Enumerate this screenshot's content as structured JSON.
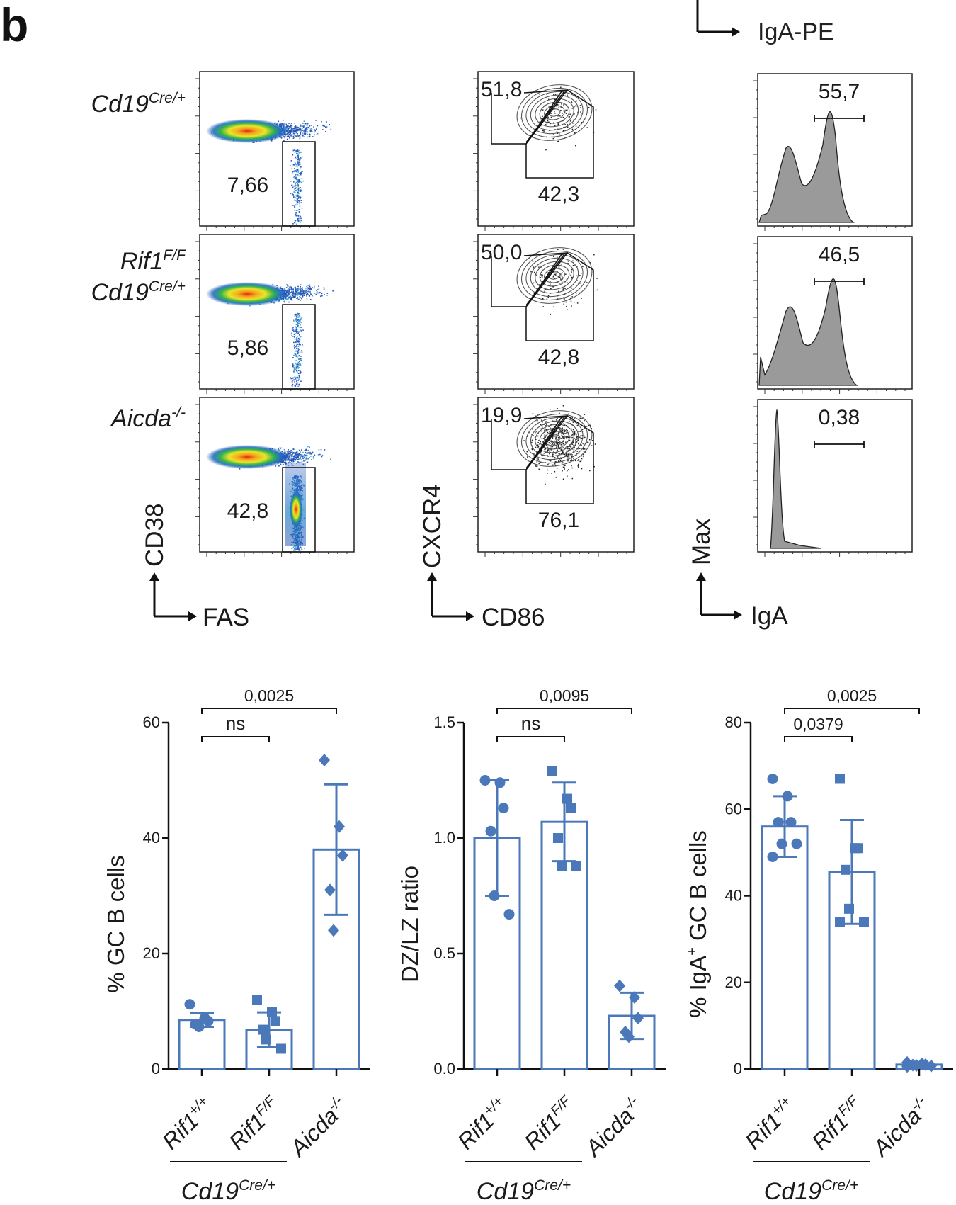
{
  "panel_letter": "b",
  "top_axis_label": "IgA-PE",
  "flow": {
    "row_labels": [
      {
        "lines": [
          {
            "base": "Cd19",
            "sup": "Cre/+"
          }
        ]
      },
      {
        "lines": [
          {
            "base": "Rif1",
            "sup": "F/F"
          },
          {
            "base": "Cd19",
            "sup": "Cre/+"
          }
        ]
      },
      {
        "lines": [
          {
            "base": "Aicda",
            "sup": "-/-"
          }
        ]
      }
    ],
    "col1": {
      "values": [
        "7,66",
        "5,86",
        "42,8"
      ],
      "x_label": "FAS",
      "y_label": "CD38"
    },
    "col2": {
      "dz_values": [
        "51,8",
        "50,0",
        "19,9"
      ],
      "lz_values": [
        "42,3",
        "42,8",
        "76,1"
      ],
      "x_label": "CD86",
      "y_label": "CXCR4"
    },
    "col3": {
      "values": [
        "55,7",
        "46,5",
        "0,38"
      ],
      "x_label": "IgA",
      "y_label": "Max"
    }
  },
  "chart_data": [
    {
      "type": "bar",
      "title": "",
      "ylabel": "% GC B cells",
      "ylim": [
        0,
        60
      ],
      "yticks": [
        0,
        20,
        40,
        60
      ],
      "ytick_labels": [
        "0",
        "20",
        "40",
        "60"
      ],
      "categories": [
        {
          "base": "Rif1",
          "sup": "+/+"
        },
        {
          "base": "Rif1",
          "sup": "F/F"
        },
        {
          "base": "Aicda",
          "sup": "-/-"
        }
      ],
      "group_label": {
        "base": "Cd19",
        "sup": "Cre/+"
      },
      "values": [
        8.5,
        6.8,
        38.0
      ],
      "sd": [
        1.2,
        3.0,
        11.3
      ],
      "points": [
        [
          11.2,
          8.8,
          8.3,
          7.8,
          7.3
        ],
        [
          12.0,
          9.9,
          8.3,
          6.8,
          5.1,
          3.5
        ],
        [
          53.5,
          42.0,
          37.0,
          31.0,
          24.0
        ]
      ],
      "markers": [
        "circle",
        "square",
        "diamond"
      ],
      "comparisons": [
        {
          "from": 0,
          "to": 1,
          "label": "ns"
        },
        {
          "from": 0,
          "to": 2,
          "label": "0,0025"
        }
      ]
    },
    {
      "type": "bar",
      "title": "",
      "ylabel": "DZ/LZ ratio",
      "ylim": [
        0,
        1.5
      ],
      "yticks": [
        0,
        0.5,
        1.0,
        1.5
      ],
      "ytick_labels": [
        "0.0",
        "0.5",
        "1.0",
        "1.5"
      ],
      "categories": [
        {
          "base": "Rif1",
          "sup": "+/+"
        },
        {
          "base": "Rif1",
          "sup": "F/F"
        },
        {
          "base": "Aicda",
          "sup": "-/-"
        }
      ],
      "group_label": {
        "base": "Cd19",
        "sup": "Cre/+"
      },
      "values": [
        1.0,
        1.07,
        0.23
      ],
      "sd": [
        0.25,
        0.17,
        0.1
      ],
      "points": [
        [
          1.25,
          1.24,
          1.13,
          1.03,
          0.75,
          0.67
        ],
        [
          1.29,
          1.17,
          1.13,
          1.0,
          0.88,
          0.88
        ],
        [
          0.36,
          0.31,
          0.22,
          0.16,
          0.14
        ]
      ],
      "markers": [
        "circle",
        "square",
        "diamond"
      ],
      "comparisons": [
        {
          "from": 0,
          "to": 1,
          "label": "ns"
        },
        {
          "from": 0,
          "to": 2,
          "label": "0,0095"
        }
      ]
    },
    {
      "type": "bar",
      "title": "",
      "ylabel": "% IgA+ GC B cells",
      "ylabel_parts": {
        "pre": "% IgA",
        "sup": "+",
        "post": " GC B cells"
      },
      "ylim": [
        0,
        80
      ],
      "yticks": [
        0,
        20,
        40,
        60,
        80
      ],
      "ytick_labels": [
        "0",
        "20",
        "40",
        "60",
        "80"
      ],
      "categories": [
        {
          "base": "Rif1",
          "sup": "+/+"
        },
        {
          "base": "Rif1",
          "sup": "F/F"
        },
        {
          "base": "Aicda",
          "sup": "-/-"
        }
      ],
      "group_label": {
        "base": "Cd19",
        "sup": "Cre/+"
      },
      "values": [
        56.0,
        45.5,
        1.0
      ],
      "sd": [
        7.0,
        12.0,
        0.3
      ],
      "points": [
        [
          67.0,
          63.0,
          57.0,
          57.0,
          52.0,
          52.0,
          49.0
        ],
        [
          67.0,
          51.0,
          51.0,
          46.0,
          37.0,
          34.0,
          34.0
        ],
        [
          1.5,
          1.2,
          1.0,
          0.9,
          0.8,
          0.7,
          0.6
        ]
      ],
      "markers": [
        "circle",
        "square",
        "diamond"
      ],
      "comparisons": [
        {
          "from": 0,
          "to": 1,
          "label": "0,0379"
        },
        {
          "from": 0,
          "to": 2,
          "label": "0,0025"
        }
      ]
    }
  ]
}
